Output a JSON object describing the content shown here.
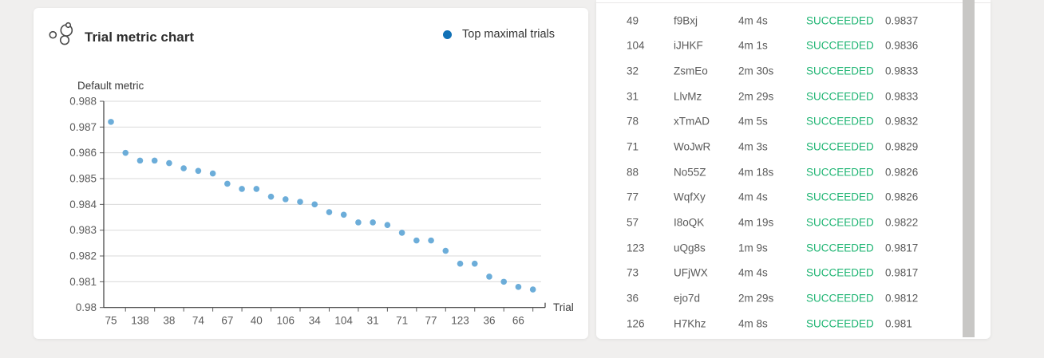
{
  "chart_card": {
    "title": "Trial metric chart",
    "legend_label": "Top maximal trials"
  },
  "chart_data": {
    "type": "scatter",
    "title": "Trial metric chart",
    "xlabel": "Trial",
    "ylabel": "Default metric",
    "ylim": [
      0.98,
      0.988
    ],
    "grid": true,
    "legend_position": "top-right",
    "legend": [
      "Top maximal trials"
    ],
    "y_tick_labels": [
      "0.988",
      "0.987",
      "0.986",
      "0.985",
      "0.984",
      "0.983",
      "0.982",
      "0.981",
      "0.98"
    ],
    "x_tick_labels": [
      "75",
      "",
      "138",
      "",
      "38",
      "",
      "74",
      "",
      "67",
      "",
      "40",
      "",
      "106",
      "",
      "34",
      "",
      "104",
      "",
      "31",
      "",
      "71",
      "",
      "77",
      "",
      "123",
      "",
      "36",
      "",
      "66",
      ""
    ],
    "series": [
      {
        "name": "Top maximal trials",
        "values": [
          0.9872,
          0.986,
          0.9857,
          0.9857,
          0.9856,
          0.9854,
          0.9853,
          0.9852,
          0.9848,
          0.9846,
          0.9846,
          0.9843,
          0.9842,
          0.9841,
          0.984,
          0.9837,
          0.9836,
          0.9833,
          0.9833,
          0.9832,
          0.9829,
          0.9826,
          0.9826,
          0.9822,
          0.9817,
          0.9817,
          0.9812,
          0.981,
          0.9808,
          0.9807
        ]
      }
    ]
  },
  "table": {
    "rows": [
      {
        "no": "49",
        "name": "f9Bxj",
        "duration": "4m 4s",
        "status": "SUCCEEDED",
        "metric": "0.9837"
      },
      {
        "no": "104",
        "name": "iJHKF",
        "duration": "4m 1s",
        "status": "SUCCEEDED",
        "metric": "0.9836"
      },
      {
        "no": "32",
        "name": "ZsmEo",
        "duration": "2m 30s",
        "status": "SUCCEEDED",
        "metric": "0.9833"
      },
      {
        "no": "31",
        "name": "LlvMz",
        "duration": "2m 29s",
        "status": "SUCCEEDED",
        "metric": "0.9833"
      },
      {
        "no": "78",
        "name": "xTmAD",
        "duration": "4m 5s",
        "status": "SUCCEEDED",
        "metric": "0.9832"
      },
      {
        "no": "71",
        "name": "WoJwR",
        "duration": "4m 3s",
        "status": "SUCCEEDED",
        "metric": "0.9829"
      },
      {
        "no": "88",
        "name": "No55Z",
        "duration": "4m 18s",
        "status": "SUCCEEDED",
        "metric": "0.9826"
      },
      {
        "no": "77",
        "name": "WqfXy",
        "duration": "4m 4s",
        "status": "SUCCEEDED",
        "metric": "0.9826"
      },
      {
        "no": "57",
        "name": "I8oQK",
        "duration": "4m 19s",
        "status": "SUCCEEDED",
        "metric": "0.9822"
      },
      {
        "no": "123",
        "name": "uQg8s",
        "duration": "1m 9s",
        "status": "SUCCEEDED",
        "metric": "0.9817"
      },
      {
        "no": "73",
        "name": "UFjWX",
        "duration": "4m 4s",
        "status": "SUCCEEDED",
        "metric": "0.9817"
      },
      {
        "no": "36",
        "name": "ejo7d",
        "duration": "2m 29s",
        "status": "SUCCEEDED",
        "metric": "0.9812"
      },
      {
        "no": "126",
        "name": "H7Khz",
        "duration": "4m 8s",
        "status": "SUCCEEDED",
        "metric": "0.981"
      }
    ]
  },
  "colors": {
    "legend_dot": "#1171b6",
    "point": "#58a2d4",
    "grid": "#dadada",
    "axis": "#3d3d3d",
    "tick": "#5c5c5c",
    "axis_label_text": "#3a3a3a",
    "status_success": "#1fb573",
    "table_text": "#5a5a5a",
    "scrollbar": "#c8c7c5"
  }
}
